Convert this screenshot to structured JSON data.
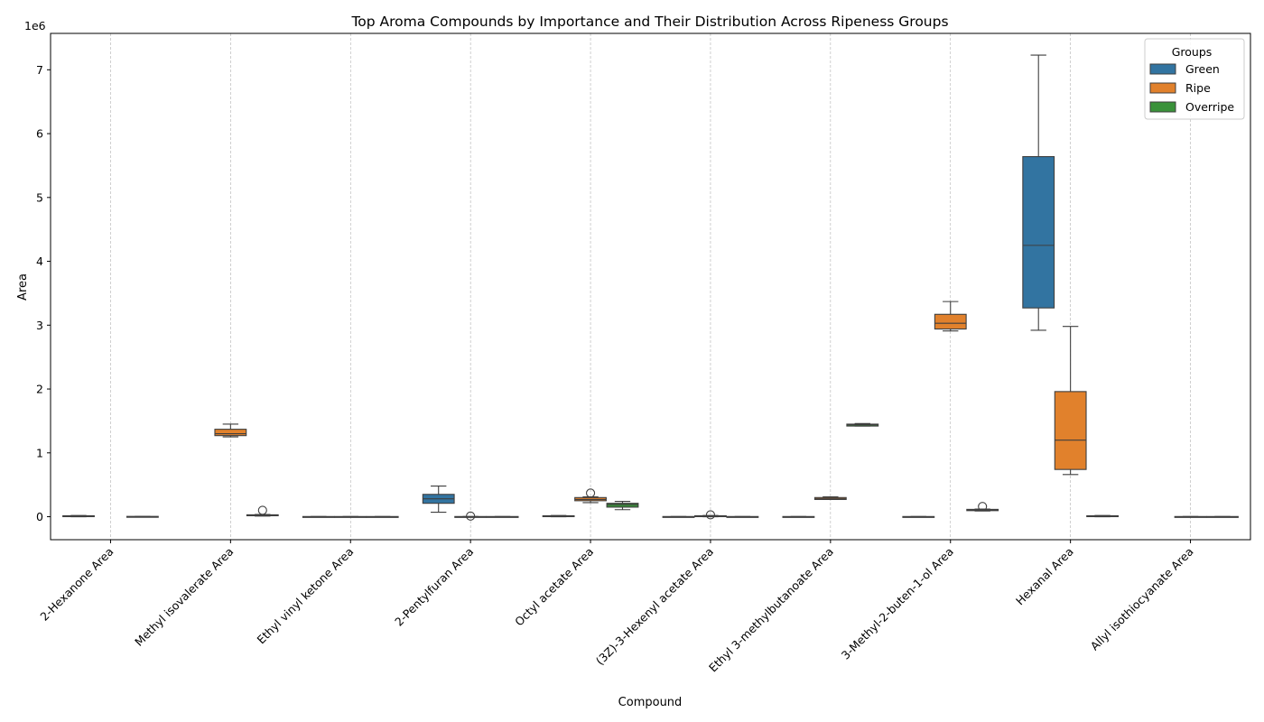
{
  "chart_data": {
    "type": "boxplot",
    "title": "Top Aroma Compounds by Importance and Their Distribution Across Ripeness Groups",
    "xlabel": "Compound",
    "ylabel": "Area",
    "y_offset_label": "1e6",
    "ylim": [
      -0.36,
      7.57
    ],
    "yticks": [
      0,
      1,
      2,
      3,
      4,
      5,
      6,
      7
    ],
    "grid": "vertical dashed at categories",
    "legend": {
      "title": "Groups",
      "placement": "top-right"
    },
    "groups": [
      {
        "name": "Green",
        "color": "#1f77b4",
        "fill": "#3274a1"
      },
      {
        "name": "Ripe",
        "color": "#ff7f0e",
        "fill": "#e1812c"
      },
      {
        "name": "Overripe",
        "color": "#2ca02c",
        "fill": "#3a923a"
      }
    ],
    "categories": [
      "2-Hexanone Area",
      "Methyl isovalerate Area",
      "Ethyl vinyl ketone Area",
      "2-Pentylfuran Area",
      "Octyl acetate Area",
      "(3Z)-3-Hexenyl acetate Area",
      "Ethyl 3-methylbutanoate Area",
      "3-Methyl-2-buten-1-ol Area",
      "Hexanal Area",
      "Allyl isothiocyanate Area"
    ],
    "boxes": [
      {
        "category": "2-Hexanone Area",
        "group": "Green",
        "whislo": 0.0,
        "q1": 0.005,
        "med": 0.01,
        "q3": 0.015,
        "whishi": 0.02,
        "fliers": []
      },
      {
        "category": "2-Hexanone Area",
        "group": "Overripe",
        "whislo": 0.0,
        "q1": 0.0,
        "med": 0.0,
        "q3": 0.005,
        "whishi": 0.005,
        "fliers": []
      },
      {
        "category": "Methyl isovalerate Area",
        "group": "Ripe",
        "whislo": 1.25,
        "q1": 1.27,
        "med": 1.3,
        "q3": 1.37,
        "whishi": 1.45,
        "fliers": []
      },
      {
        "category": "Methyl isovalerate Area",
        "group": "Overripe",
        "whislo": 0.01,
        "q1": 0.015,
        "med": 0.02,
        "q3": 0.03,
        "whishi": 0.035,
        "fliers": [
          0.1
        ]
      },
      {
        "category": "Ethyl vinyl ketone Area",
        "group": "Green",
        "whislo": 0.0,
        "q1": 0.0,
        "med": 0.0,
        "q3": 0.003,
        "whishi": 0.003,
        "fliers": []
      },
      {
        "category": "Ethyl vinyl ketone Area",
        "group": "Ripe",
        "whislo": 0.0,
        "q1": 0.0,
        "med": 0.0,
        "q3": 0.003,
        "whishi": 0.003,
        "fliers": []
      },
      {
        "category": "Ethyl vinyl ketone Area",
        "group": "Overripe",
        "whislo": 0.0,
        "q1": 0.0,
        "med": 0.0,
        "q3": 0.003,
        "whishi": 0.003,
        "fliers": []
      },
      {
        "category": "2-Pentylfuran Area",
        "group": "Green",
        "whislo": 0.07,
        "q1": 0.21,
        "med": 0.28,
        "q3": 0.35,
        "whishi": 0.48,
        "fliers": []
      },
      {
        "category": "2-Pentylfuran Area",
        "group": "Ripe",
        "whislo": 0.0,
        "q1": 0.0,
        "med": 0.0,
        "q3": 0.003,
        "whishi": 0.003,
        "fliers": [
          0.01
        ]
      },
      {
        "category": "2-Pentylfuran Area",
        "group": "Overripe",
        "whislo": 0.0,
        "q1": 0.0,
        "med": 0.0,
        "q3": 0.003,
        "whishi": 0.003,
        "fliers": []
      },
      {
        "category": "Octyl acetate Area",
        "group": "Green",
        "whislo": 0.0,
        "q1": 0.005,
        "med": 0.01,
        "q3": 0.015,
        "whishi": 0.02,
        "fliers": []
      },
      {
        "category": "Octyl acetate Area",
        "group": "Ripe",
        "whislo": 0.22,
        "q1": 0.25,
        "med": 0.27,
        "q3": 0.3,
        "whishi": 0.31,
        "fliers": [
          0.37
        ]
      },
      {
        "category": "Octyl acetate Area",
        "group": "Overripe",
        "whislo": 0.11,
        "q1": 0.15,
        "med": 0.19,
        "q3": 0.21,
        "whishi": 0.24,
        "fliers": []
      },
      {
        "category": "(3Z)-3-Hexenyl acetate Area",
        "group": "Green",
        "whislo": 0.0,
        "q1": 0.0,
        "med": 0.0,
        "q3": 0.003,
        "whishi": 0.003,
        "fliers": []
      },
      {
        "category": "(3Z)-3-Hexenyl acetate Area",
        "group": "Ripe",
        "whislo": 0.0,
        "q1": 0.005,
        "med": 0.01,
        "q3": 0.015,
        "whishi": 0.02,
        "fliers": [
          0.03
        ]
      },
      {
        "category": "(3Z)-3-Hexenyl acetate Area",
        "group": "Overripe",
        "whislo": 0.0,
        "q1": 0.0,
        "med": 0.0,
        "q3": 0.003,
        "whishi": 0.003,
        "fliers": []
      },
      {
        "category": "Ethyl 3-methylbutanoate Area",
        "group": "Green",
        "whislo": 0.0,
        "q1": 0.0,
        "med": 0.0,
        "q3": 0.003,
        "whishi": 0.003,
        "fliers": []
      },
      {
        "category": "Ethyl 3-methylbutanoate Area",
        "group": "Ripe",
        "whislo": 0.27,
        "q1": 0.27,
        "med": 0.28,
        "q3": 0.3,
        "whishi": 0.31,
        "fliers": []
      },
      {
        "category": "Ethyl 3-methylbutanoate Area",
        "group": "Overripe",
        "whislo": 1.42,
        "q1": 1.42,
        "med": 1.44,
        "q3": 1.45,
        "whishi": 1.46,
        "fliers": []
      },
      {
        "category": "3-Methyl-2-buten-1-ol Area",
        "group": "Green",
        "whislo": 0.0,
        "q1": 0.0,
        "med": 0.0,
        "q3": 0.003,
        "whishi": 0.003,
        "fliers": []
      },
      {
        "category": "3-Methyl-2-buten-1-ol Area",
        "group": "Ripe",
        "whislo": 2.91,
        "q1": 2.94,
        "med": 3.03,
        "q3": 3.17,
        "whishi": 3.37,
        "fliers": []
      },
      {
        "category": "3-Methyl-2-buten-1-ol Area",
        "group": "Overripe",
        "whislo": 0.09,
        "q1": 0.095,
        "med": 0.105,
        "q3": 0.115,
        "whishi": 0.12,
        "fliers": [
          0.16
        ]
      },
      {
        "category": "Hexanal Area",
        "group": "Green",
        "whislo": 2.92,
        "q1": 3.27,
        "med": 4.25,
        "q3": 5.64,
        "whishi": 7.23,
        "fliers": []
      },
      {
        "category": "Hexanal Area",
        "group": "Ripe",
        "whislo": 0.66,
        "q1": 0.74,
        "med": 1.2,
        "q3": 1.96,
        "whishi": 2.98,
        "fliers": []
      },
      {
        "category": "Hexanal Area",
        "group": "Overripe",
        "whislo": 0.0,
        "q1": 0.005,
        "med": 0.01,
        "q3": 0.015,
        "whishi": 0.02,
        "fliers": []
      },
      {
        "category": "Allyl isothiocyanate Area",
        "group": "Ripe",
        "whislo": 0.0,
        "q1": 0.0,
        "med": 0.0,
        "q3": 0.003,
        "whishi": 0.003,
        "fliers": []
      },
      {
        "category": "Allyl isothiocyanate Area",
        "group": "Overripe",
        "whislo": 0.0,
        "q1": 0.0,
        "med": 0.0,
        "q3": 0.003,
        "whishi": 0.003,
        "fliers": []
      }
    ]
  }
}
